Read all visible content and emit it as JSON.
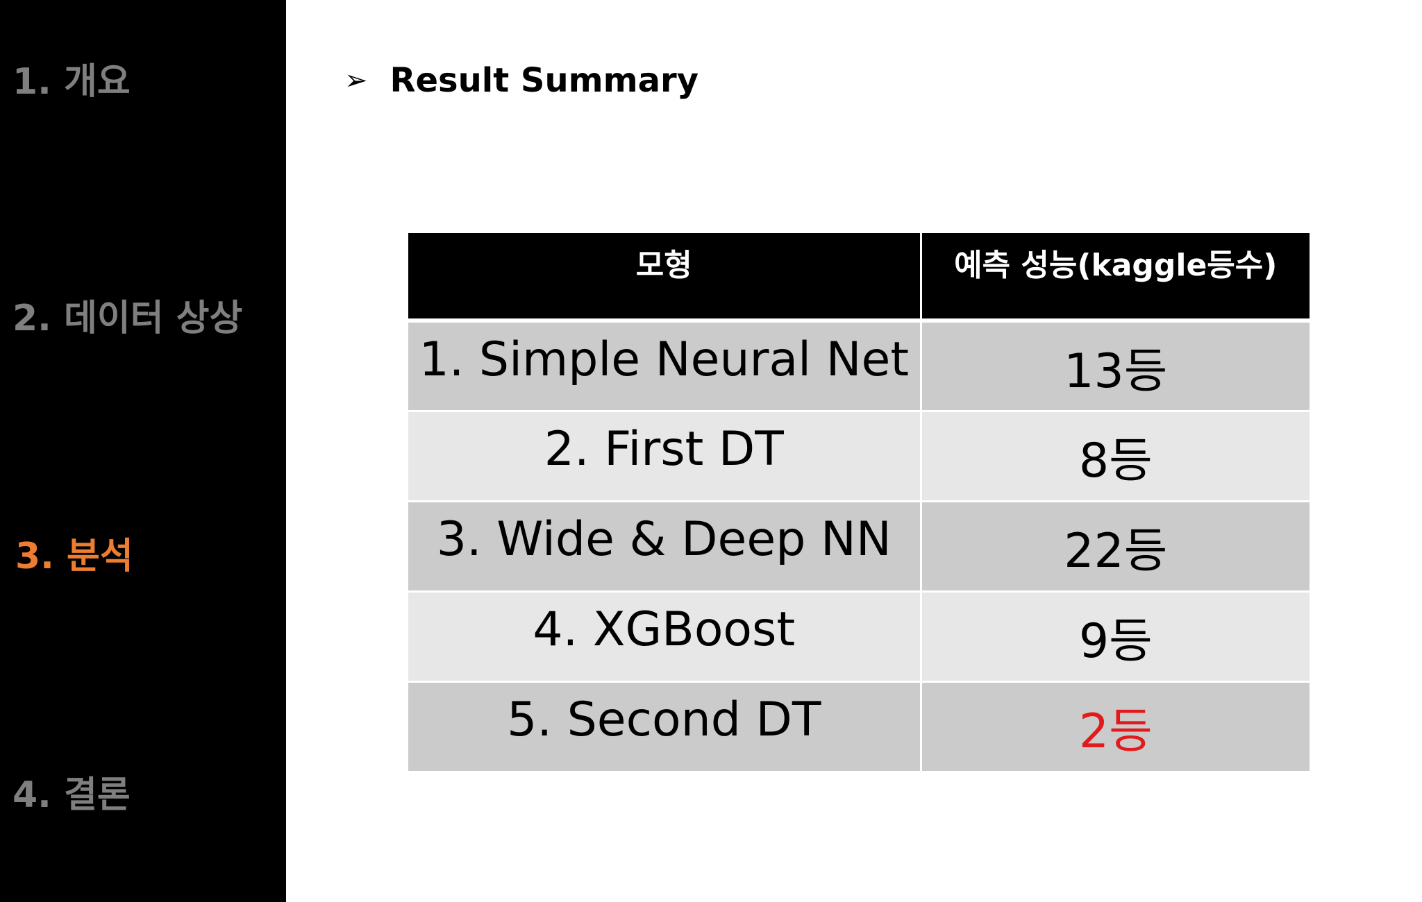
{
  "sidebar": {
    "items": [
      {
        "label": "1. 개요"
      },
      {
        "label": "2. 데이터 상상"
      },
      {
        "label": "3. 분석"
      },
      {
        "label": "4. 결론"
      }
    ],
    "active_color": "#ed7d31",
    "inactive_color": "#7f7f7f"
  },
  "section": {
    "bullet": "➢",
    "title": "Result Summary"
  },
  "table": {
    "headers": [
      "모형",
      "예측 성능(kaggle등수)"
    ],
    "rows": [
      {
        "model": "1. Simple Neural Net",
        "rank": "13등"
      },
      {
        "model": "2. First DT",
        "rank": "8등"
      },
      {
        "model": "3. Wide & Deep NN",
        "rank": "22등"
      },
      {
        "model": "4. XGBoost",
        "rank": "9등"
      },
      {
        "model": "5. Second DT",
        "rank": "2등",
        "highlight": true
      }
    ],
    "highlight_color": "#e31a1c"
  }
}
